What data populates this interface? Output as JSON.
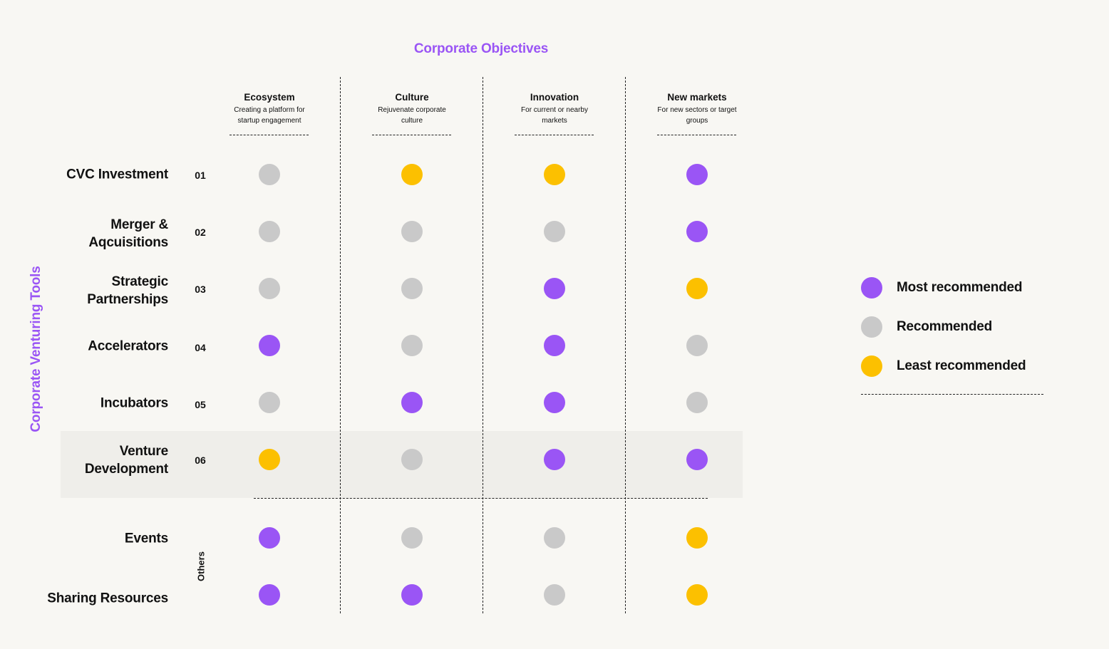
{
  "titles": {
    "objectives": "Corporate Objectives",
    "tools": "Corporate Venturing Tools"
  },
  "colors": {
    "most": "#9a55f5",
    "recommended": "#c9c9c9",
    "least": "#fcc000"
  },
  "columns": [
    {
      "title": "Ecosystem",
      "sub": "Creating a platform for startup engagement"
    },
    {
      "title": "Culture",
      "sub": "Rejuvenate corporate culture"
    },
    {
      "title": "Innovation",
      "sub": "For current or nearby markets"
    },
    {
      "title": "New markets",
      "sub": "For new sectors or target groups"
    }
  ],
  "rows": [
    {
      "label": "CVC Investment",
      "num": "01",
      "ratings": [
        "recommended",
        "least",
        "least",
        "most"
      ]
    },
    {
      "label": "Merger & Aqcuisitions",
      "num": "02",
      "ratings": [
        "recommended",
        "recommended",
        "recommended",
        "most"
      ]
    },
    {
      "label": "Strategic Partnerships",
      "num": "03",
      "ratings": [
        "recommended",
        "recommended",
        "most",
        "least"
      ]
    },
    {
      "label": "Accelerators",
      "num": "04",
      "ratings": [
        "most",
        "recommended",
        "most",
        "recommended"
      ]
    },
    {
      "label": "Incubators",
      "num": "05",
      "ratings": [
        "recommended",
        "most",
        "most",
        "recommended"
      ]
    },
    {
      "label": "Venture Development",
      "num": "06",
      "ratings": [
        "least",
        "recommended",
        "most",
        "most"
      ]
    },
    {
      "label": "Events",
      "num": "",
      "ratings": [
        "most",
        "recommended",
        "recommended",
        "least"
      ]
    },
    {
      "label": "Sharing Resources",
      "num": "",
      "ratings": [
        "most",
        "most",
        "recommended",
        "least"
      ]
    }
  ],
  "others_label": "Others",
  "legend": [
    {
      "key": "most",
      "label": "Most recommended"
    },
    {
      "key": "recommended",
      "label": "Recommended"
    },
    {
      "key": "least",
      "label": "Least recommended"
    }
  ]
}
